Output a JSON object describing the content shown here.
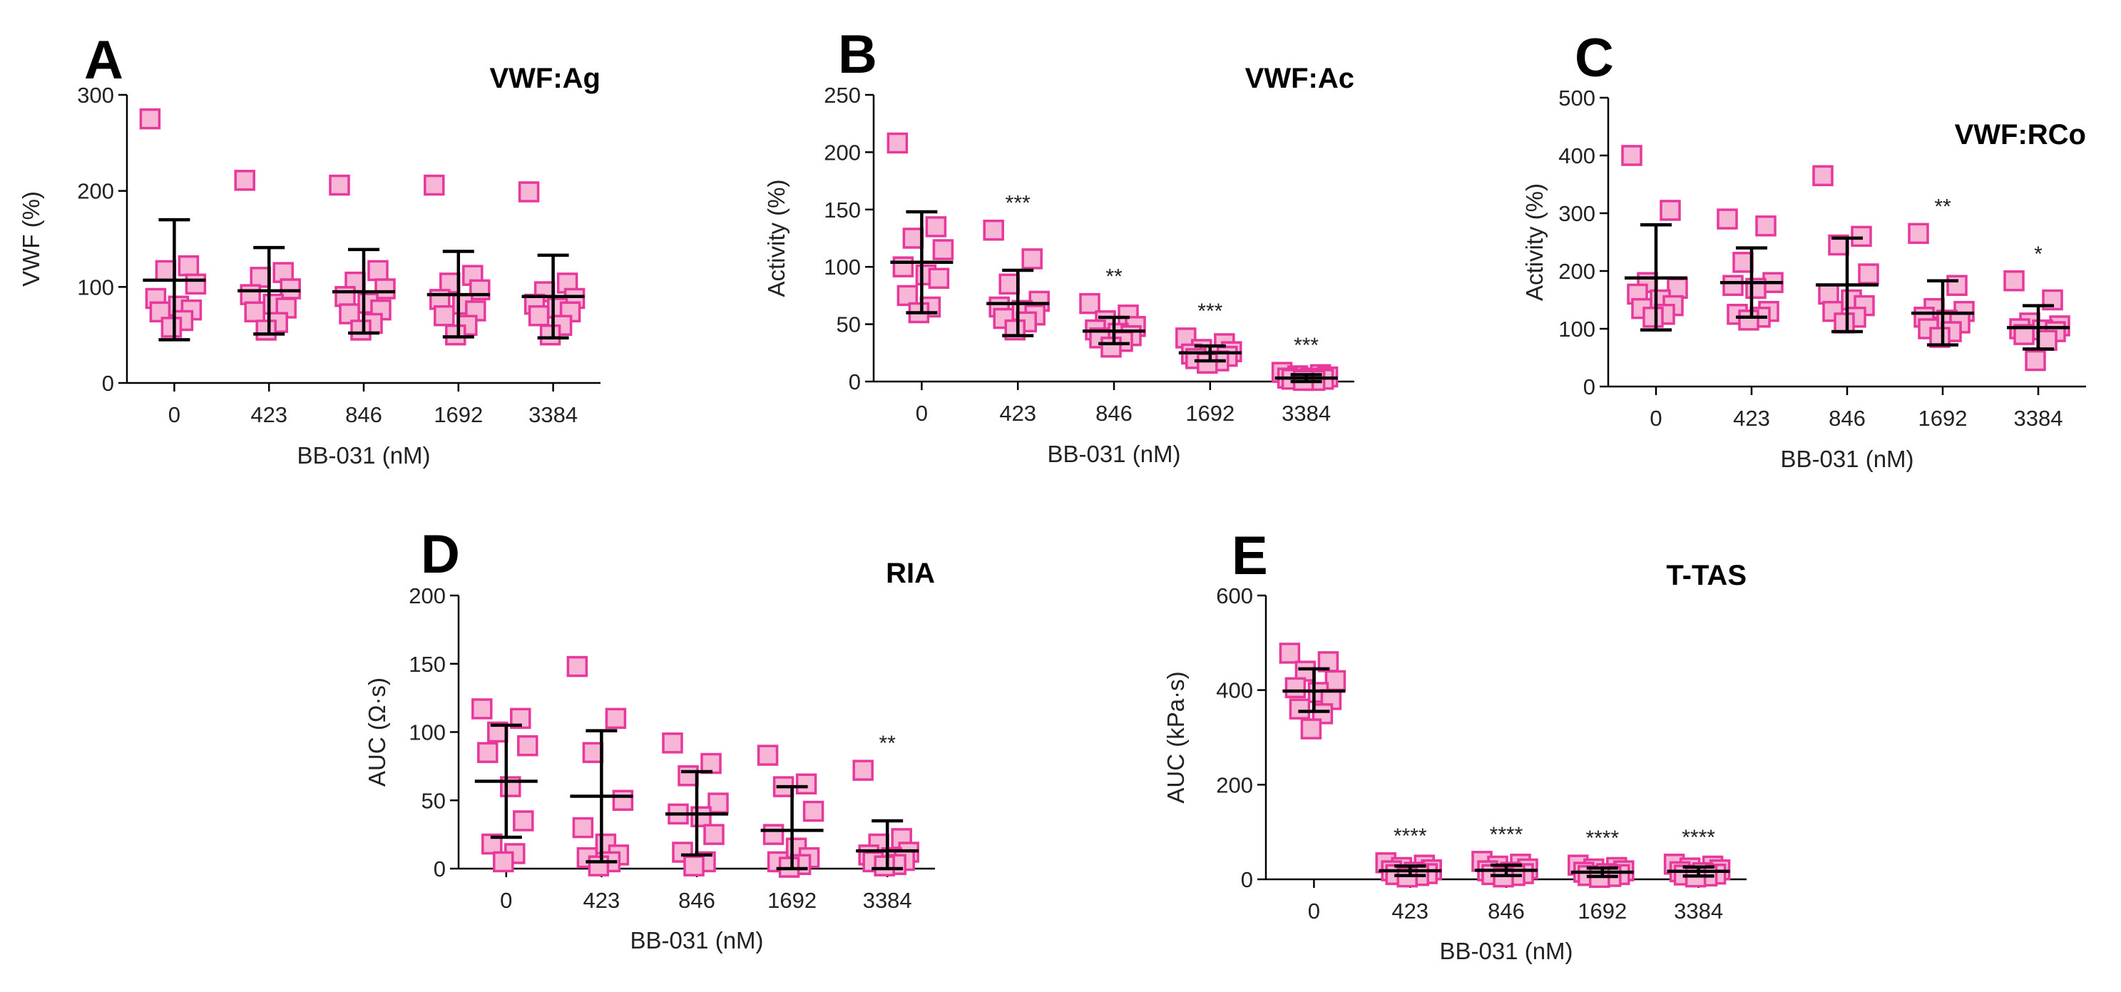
{
  "figure": {
    "colors": {
      "marker_fill": "#f7b6d6",
      "marker_stroke": "#e6399b",
      "line": "#000000"
    }
  },
  "chart_data": [
    {
      "panel": "A",
      "title": "VWF:Ag",
      "type": "scatter",
      "xlabel": "BB-031 (nM)",
      "ylabel": "VWF (%)",
      "categories": [
        "0",
        "423",
        "846",
        "1692",
        "3384"
      ],
      "ylim": [
        0,
        300
      ],
      "yticks": [
        0,
        100,
        200,
        300
      ],
      "groups": [
        {
          "points": [
            275,
            122,
            117,
            103,
            88,
            80,
            76,
            74,
            65,
            58
          ],
          "mean": 107,
          "sd_low": 45,
          "sd_high": 170,
          "sig": ""
        },
        {
          "points": [
            211,
            115,
            110,
            98,
            92,
            82,
            78,
            74,
            63,
            55
          ],
          "mean": 96,
          "sd_low": 51,
          "sd_high": 141,
          "sig": ""
        },
        {
          "points": [
            206,
            117,
            105,
            98,
            90,
            83,
            76,
            72,
            62,
            55
          ],
          "mean": 95,
          "sd_low": 52,
          "sd_high": 139,
          "sig": ""
        },
        {
          "points": [
            206,
            112,
            104,
            97,
            87,
            82,
            75,
            70,
            60,
            50
          ],
          "mean": 92,
          "sd_low": 48,
          "sd_high": 137,
          "sig": ""
        },
        {
          "points": [
            199,
            104,
            95,
            88,
            82,
            78,
            74,
            70,
            60,
            50
          ],
          "mean": 90,
          "sd_low": 47,
          "sd_high": 133,
          "sig": ""
        }
      ]
    },
    {
      "panel": "B",
      "title": "VWF:Ac",
      "type": "scatter",
      "xlabel": "BB-031 (nM)",
      "ylabel": "Activity (%)",
      "categories": [
        "0",
        "423",
        "846",
        "1692",
        "3384"
      ],
      "ylim": [
        0,
        250
      ],
      "yticks": [
        0,
        50,
        100,
        150,
        200,
        250
      ],
      "groups": [
        {
          "points": [
            208,
            135,
            125,
            115,
            100,
            93,
            90,
            75,
            65,
            60
          ],
          "mean": 104,
          "sd_low": 60,
          "sd_high": 148,
          "sig": ""
        },
        {
          "points": [
            132,
            107,
            85,
            70,
            65,
            62,
            58,
            55,
            52,
            45
          ],
          "mean": 68,
          "sd_low": 40,
          "sd_high": 97,
          "sig": "***"
        },
        {
          "points": [
            68,
            58,
            53,
            48,
            45,
            42,
            40,
            38,
            35,
            30
          ],
          "mean": 44,
          "sd_low": 33,
          "sd_high": 56,
          "sig": "**"
        },
        {
          "points": [
            38,
            33,
            28,
            26,
            24,
            23,
            22,
            20,
            18,
            16
          ],
          "mean": 25,
          "sd_low": 18,
          "sd_high": 31,
          "sig": "***"
        },
        {
          "points": [
            8,
            6,
            5,
            4,
            3,
            3,
            2,
            2,
            1,
            1
          ],
          "mean": 3,
          "sd_low": 0,
          "sd_high": 6,
          "sig": "***"
        }
      ]
    },
    {
      "panel": "C",
      "title": "VWF:RCo",
      "type": "scatter",
      "xlabel": "BB-031 (nM)",
      "ylabel": "Activity (%)",
      "categories": [
        "0",
        "423",
        "846",
        "1692",
        "3384"
      ],
      "ylim": [
        0,
        500
      ],
      "yticks": [
        0,
        100,
        200,
        300,
        400,
        500
      ],
      "groups": [
        {
          "points": [
            400,
            305,
            180,
            170,
            160,
            150,
            140,
            135,
            125,
            120
          ],
          "mean": 188,
          "sd_low": 98,
          "sd_high": 280,
          "sig": ""
        },
        {
          "points": [
            290,
            278,
            215,
            180,
            175,
            170,
            130,
            125,
            120,
            115
          ],
          "mean": 180,
          "sd_low": 120,
          "sd_high": 240,
          "sig": ""
        },
        {
          "points": [
            365,
            260,
            245,
            195,
            160,
            150,
            140,
            130,
            120,
            110
          ],
          "mean": 176,
          "sd_low": 95,
          "sd_high": 257,
          "sig": ""
        },
        {
          "points": [
            265,
            175,
            135,
            130,
            120,
            115,
            110,
            100,
            95,
            85
          ],
          "mean": 127,
          "sd_low": 72,
          "sd_high": 183,
          "sig": "**"
        },
        {
          "points": [
            183,
            150,
            110,
            105,
            100,
            98,
            95,
            90,
            80,
            45
          ],
          "mean": 102,
          "sd_low": 65,
          "sd_high": 140,
          "sig": "*"
        }
      ]
    },
    {
      "panel": "D",
      "title": "RIA",
      "type": "scatter",
      "xlabel": "BB-031 (nM)",
      "ylabel": "AUC (Ω·s)",
      "categories": [
        "0",
        "423",
        "846",
        "1692",
        "3384"
      ],
      "ylim": [
        0,
        200
      ],
      "yticks": [
        0,
        50,
        100,
        150,
        200
      ],
      "groups": [
        {
          "points": [
            117,
            110,
            100,
            90,
            85,
            60,
            35,
            18,
            11,
            5
          ],
          "mean": 64,
          "sd_low": 23,
          "sd_high": 105,
          "sig": ""
        },
        {
          "points": [
            148,
            110,
            85,
            50,
            30,
            18,
            10,
            8,
            5,
            2
          ],
          "mean": 53,
          "sd_low": 5,
          "sd_high": 101,
          "sig": ""
        },
        {
          "points": [
            92,
            77,
            68,
            48,
            40,
            38,
            25,
            12,
            5,
            2
          ],
          "mean": 40,
          "sd_low": 10,
          "sd_high": 71,
          "sig": ""
        },
        {
          "points": [
            83,
            62,
            60,
            42,
            25,
            15,
            8,
            5,
            3,
            1
          ],
          "mean": 28,
          "sd_low": 0,
          "sd_high": 60,
          "sig": ""
        },
        {
          "points": [
            72,
            22,
            18,
            12,
            10,
            8,
            6,
            5,
            3,
            2
          ],
          "mean": 13,
          "sd_low": 0,
          "sd_high": 35,
          "sig": "**"
        }
      ]
    },
    {
      "panel": "E",
      "title": "T-TAS",
      "type": "scatter",
      "xlabel": "BB-031 (nM)",
      "ylabel": "AUC (kPa·s)",
      "categories": [
        "0",
        "423",
        "846",
        "1692",
        "3384"
      ],
      "ylim": [
        0,
        600
      ],
      "yticks": [
        0,
        200,
        400,
        600
      ],
      "groups": [
        {
          "points": [
            478,
            460,
            440,
            420,
            405,
            395,
            380,
            360,
            350,
            318
          ],
          "mean": 398,
          "sd_low": 355,
          "sd_high": 445,
          "sig": ""
        },
        {
          "points": [
            35,
            30,
            25,
            20,
            18,
            15,
            12,
            10,
            8,
            5
          ],
          "mean": 18,
          "sd_low": 8,
          "sd_high": 28,
          "sig": "****"
        },
        {
          "points": [
            38,
            32,
            28,
            22,
            18,
            15,
            12,
            10,
            8,
            5
          ],
          "mean": 19,
          "sd_low": 8,
          "sd_high": 30,
          "sig": "****"
        },
        {
          "points": [
            30,
            25,
            22,
            18,
            15,
            12,
            10,
            8,
            6,
            4
          ],
          "mean": 15,
          "sd_low": 6,
          "sd_high": 24,
          "sig": "****"
        },
        {
          "points": [
            32,
            28,
            24,
            20,
            16,
            14,
            11,
            9,
            7,
            5
          ],
          "mean": 17,
          "sd_low": 7,
          "sd_high": 26,
          "sig": "****"
        }
      ]
    }
  ]
}
